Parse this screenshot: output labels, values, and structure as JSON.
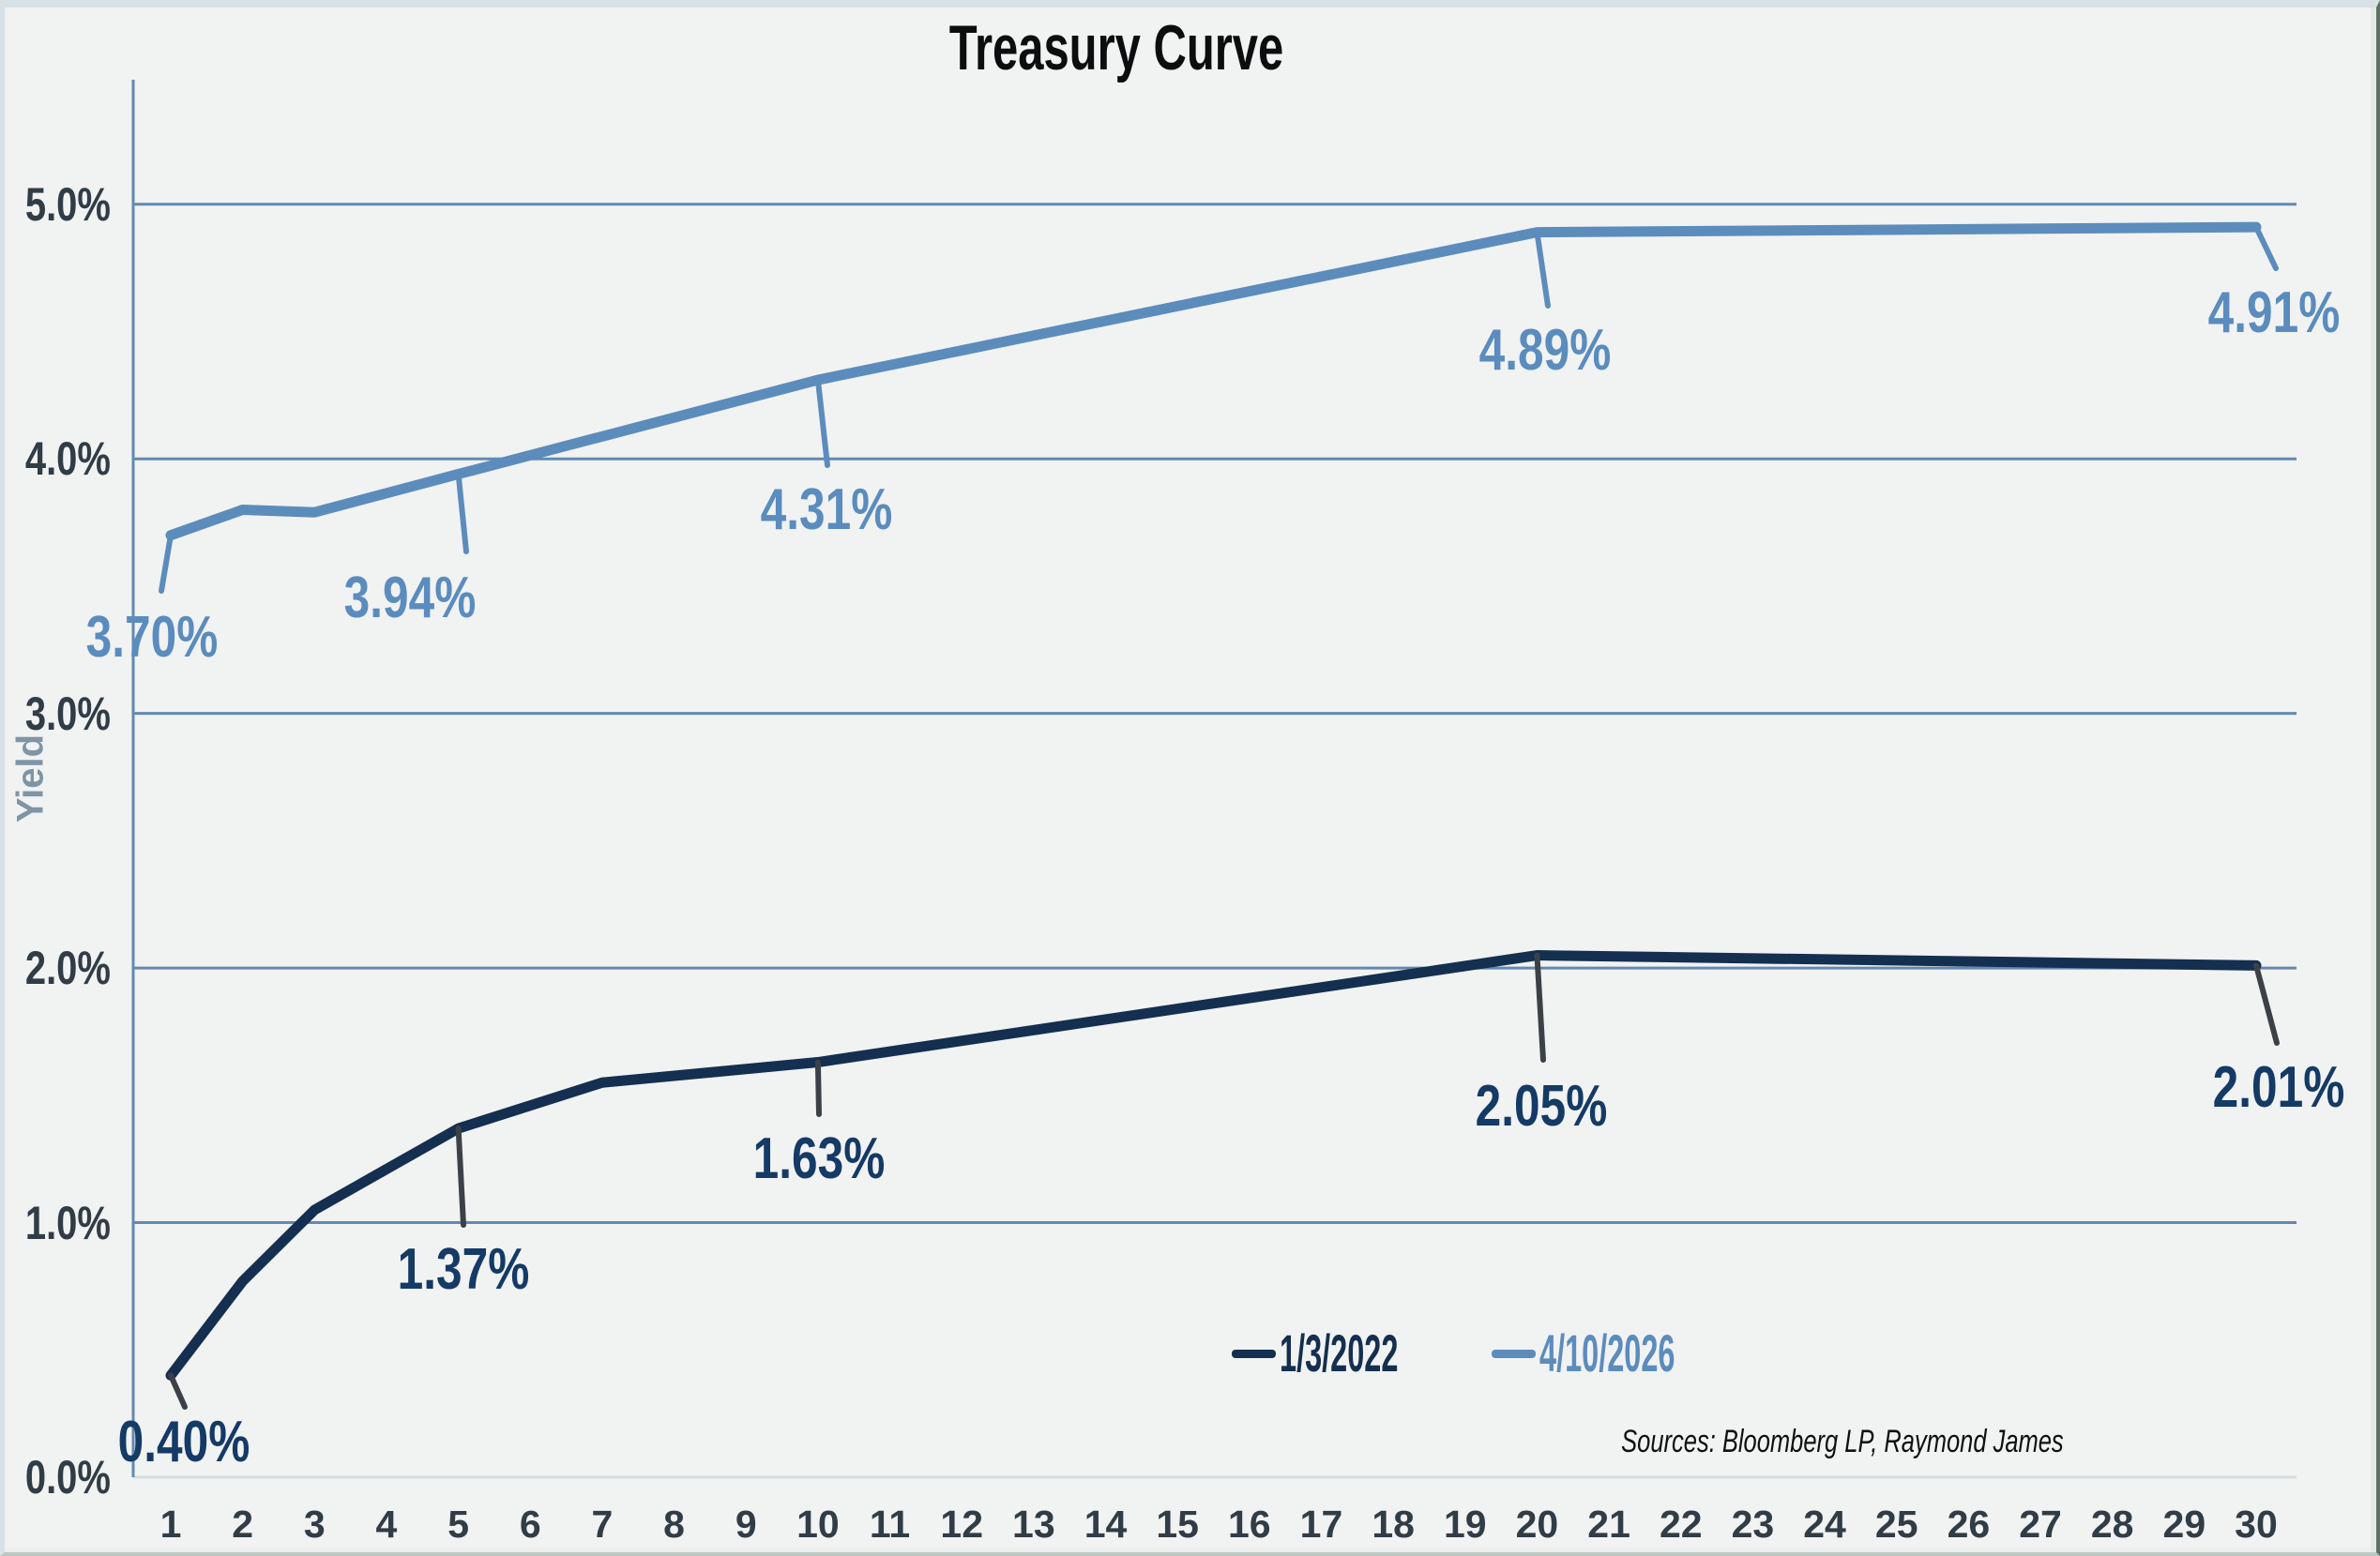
{
  "title": "Treasury Curve",
  "y_axis_title": "Yield",
  "sources": "Sources: Bloomberg LP, Raymond James",
  "colors": {
    "background": "#f1f2f2",
    "gridline": "#6289b2",
    "axis_line": "#6289b2",
    "baseline": "#d5dde2",
    "tick_label": "#313d46",
    "axis_title_color": "#7e95a5",
    "series_2022_line": "#142f4f",
    "series_2022_label": "#143a66",
    "series_2022_leader": "#3c4147",
    "series_2026_line": "#5c8cbc",
    "series_2026_label": "#5a8cbe",
    "series_2026_leader": "#5c8cbc"
  },
  "chart_data": {
    "type": "line",
    "title": "Treasury Curve",
    "xlabel": "",
    "ylabel": "Yield",
    "ylim": [
      0,
      5.5
    ],
    "xlim": [
      0.5,
      30.5
    ],
    "grid": "horizontal",
    "legend_position": "bottom-right-inside",
    "x_ticks": [
      1,
      2,
      3,
      4,
      5,
      6,
      7,
      8,
      9,
      10,
      11,
      12,
      13,
      14,
      15,
      16,
      17,
      18,
      19,
      20,
      21,
      22,
      23,
      24,
      25,
      26,
      27,
      28,
      29,
      30
    ],
    "y_ticks": [
      {
        "value": 0,
        "label": "0.0%"
      },
      {
        "value": 1,
        "label": "1.0%"
      },
      {
        "value": 2,
        "label": "2.0%"
      },
      {
        "value": 3,
        "label": "3.0%"
      },
      {
        "value": 4,
        "label": "4.0%"
      },
      {
        "value": 5,
        "label": "5.0%"
      }
    ],
    "series": [
      {
        "name": "1/3/2022",
        "color": "#142f4f",
        "label_color": "#143a66",
        "leader_color": "#3c4147",
        "points": [
          {
            "x": 1,
            "y": 0.4
          },
          {
            "x": 2,
            "y": 0.77
          },
          {
            "x": 3,
            "y": 1.05
          },
          {
            "x": 5,
            "y": 1.37
          },
          {
            "x": 7,
            "y": 1.55
          },
          {
            "x": 10,
            "y": 1.63
          },
          {
            "x": 20,
            "y": 2.05
          },
          {
            "x": 30,
            "y": 2.01
          }
        ]
      },
      {
        "name": "4/10/2026",
        "color": "#5c8cbc",
        "label_color": "#5a8cbe",
        "leader_color": "#5c8cbc",
        "points": [
          {
            "x": 1,
            "y": 3.7
          },
          {
            "x": 2,
            "y": 3.8
          },
          {
            "x": 3,
            "y": 3.79
          },
          {
            "x": 5,
            "y": 3.94
          },
          {
            "x": 10,
            "y": 4.31
          },
          {
            "x": 20,
            "y": 4.89
          },
          {
            "x": 30,
            "y": 4.91
          }
        ]
      }
    ],
    "callouts": [
      {
        "series": 0,
        "x": 1,
        "label": "0.40%"
      },
      {
        "series": 0,
        "x": 5,
        "label": "1.37%"
      },
      {
        "series": 0,
        "x": 10,
        "label": "1.63%"
      },
      {
        "series": 0,
        "x": 20,
        "label": "2.05%"
      },
      {
        "series": 0,
        "x": 30,
        "label": "2.01%"
      },
      {
        "series": 1,
        "x": 1,
        "label": "3.70%"
      },
      {
        "series": 1,
        "x": 5,
        "label": "3.94%"
      },
      {
        "series": 1,
        "x": 10,
        "label": "4.31%"
      },
      {
        "series": 1,
        "x": 20,
        "label": "4.89%"
      },
      {
        "series": 1,
        "x": 30,
        "label": "4.91%"
      }
    ]
  }
}
